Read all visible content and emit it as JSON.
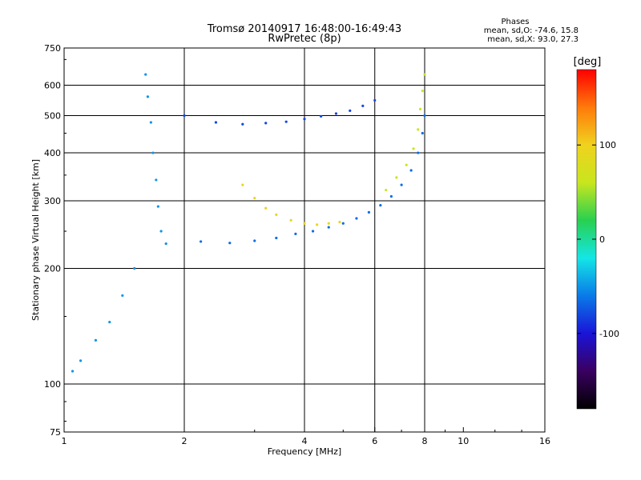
{
  "chart_data": {
    "type": "scatter",
    "title": "Tromsø 20140917 16:48:00-16:49:43",
    "subtitle": "RwPretec (8p)",
    "xlabel": "Frequency [MHz]",
    "ylabel": "Stationary phase Virtual Height [km]",
    "x_scale": "log2",
    "y_scale": "log",
    "xlim": [
      1,
      16
    ],
    "ylim": [
      75,
      750
    ],
    "x_ticks": [
      1,
      2,
      4,
      6,
      8,
      10,
      16
    ],
    "y_ticks": [
      75,
      100,
      200,
      300,
      400,
      500,
      600,
      750
    ],
    "x_gridlines": [
      2,
      4,
      6,
      8
    ],
    "y_gridlines": [
      100,
      200,
      300,
      400,
      500,
      600
    ],
    "grid": true,
    "legend": {
      "title": "Phases",
      "line1": "mean, sd,O: -74.6, 15.8",
      "line2": "mean, sd,X: 93.0, 27.3"
    },
    "colorbar": {
      "label": "[deg]",
      "range": [
        -180,
        180
      ],
      "ticks": [
        100,
        0,
        -100
      ],
      "tick_labels": [
        "100",
        "0",
        "-100"
      ],
      "colormap": [
        "#000000",
        "#3a0060",
        "#1a14d8",
        "#0a7ae8",
        "#14e6e6",
        "#28d050",
        "#c8e61e",
        "#f0d21e",
        "#ff7a0a",
        "#ff0000"
      ]
    },
    "series": [
      {
        "phase_deg": -65,
        "points": [
          [
            2.2,
            235
          ],
          [
            2.6,
            233
          ],
          [
            3.0,
            236
          ],
          [
            3.4,
            240
          ],
          [
            3.8,
            246
          ],
          [
            4.2,
            250
          ],
          [
            4.6,
            256
          ],
          [
            5.0,
            262
          ],
          [
            5.4,
            270
          ],
          [
            5.8,
            280
          ],
          [
            6.2,
            292
          ],
          [
            6.6,
            308
          ],
          [
            7.0,
            330
          ],
          [
            7.4,
            360
          ],
          [
            7.7,
            400
          ],
          [
            7.9,
            450
          ],
          [
            8.0,
            500
          ]
        ]
      },
      {
        "phase_deg": -80,
        "points": [
          [
            2.0,
            500
          ],
          [
            2.4,
            480
          ],
          [
            2.8,
            475
          ],
          [
            3.2,
            478
          ],
          [
            3.6,
            482
          ],
          [
            4.0,
            490
          ],
          [
            4.4,
            498
          ],
          [
            4.8,
            506
          ],
          [
            5.2,
            515
          ],
          [
            5.6,
            530
          ],
          [
            6.0,
            548
          ]
        ]
      },
      {
        "phase_deg": 95,
        "points": [
          [
            2.8,
            330
          ],
          [
            3.0,
            305
          ],
          [
            3.2,
            287
          ],
          [
            3.4,
            276
          ],
          [
            3.7,
            267
          ],
          [
            4.0,
            262
          ],
          [
            4.3,
            260
          ],
          [
            4.6,
            262
          ],
          [
            4.9,
            264
          ]
        ]
      },
      {
        "phase_deg": 60,
        "points": [
          [
            6.4,
            320
          ],
          [
            6.8,
            345
          ],
          [
            7.2,
            372
          ],
          [
            7.5,
            410
          ],
          [
            7.7,
            460
          ],
          [
            7.8,
            520
          ],
          [
            7.9,
            580
          ],
          [
            8.0,
            640
          ]
        ]
      },
      {
        "phase_deg": -50,
        "points": [
          [
            1.6,
            640
          ],
          [
            1.62,
            560
          ],
          [
            1.65,
            480
          ],
          [
            1.67,
            400
          ],
          [
            1.7,
            340
          ],
          [
            1.72,
            290
          ],
          [
            1.75,
            250
          ],
          [
            1.8,
            232
          ],
          [
            1.5,
            200
          ],
          [
            1.4,
            170
          ],
          [
            1.3,
            145
          ],
          [
            1.2,
            130
          ],
          [
            1.1,
            115
          ],
          [
            1.05,
            108
          ]
        ]
      }
    ]
  }
}
